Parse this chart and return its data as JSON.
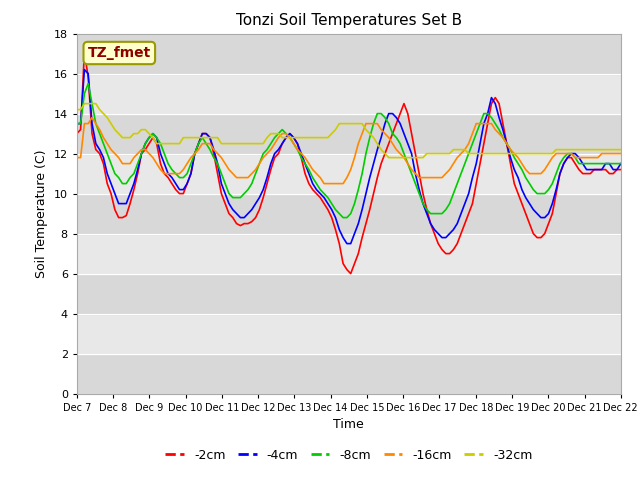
{
  "title": "Tonzi Soil Temperatures Set B",
  "xlabel": "Time",
  "ylabel": "Soil Temperature (C)",
  "annotation": "TZ_fmet",
  "annotation_color": "#8B0000",
  "annotation_bg": "#FFFFCC",
  "annotation_edge": "#999900",
  "ylim": [
    0,
    18
  ],
  "yticks": [
    0,
    2,
    4,
    6,
    8,
    10,
    12,
    14,
    16,
    18
  ],
  "xtick_labels": [
    "Dec 7",
    "Dec 8",
    "Dec 9",
    "Dec 10",
    "Dec 11",
    "Dec 12",
    "Dec 13",
    "Dec 14",
    "Dec 15",
    "Dec 16",
    "Dec 17",
    "Dec 18",
    "Dec 19",
    "Dec 20",
    "Dec 21",
    "Dec 22"
  ],
  "colors": {
    "-2cm": "#FF0000",
    "-4cm": "#0000FF",
    "-8cm": "#00CC00",
    "-16cm": "#FF8800",
    "-32cm": "#CCCC00"
  },
  "linewidth": 1.2,
  "figsize": [
    6.4,
    4.8
  ],
  "dpi": 100,
  "bg_even": "#D8D8D8",
  "bg_odd": "#E8E8E8",
  "series": {
    "-2cm": [
      13.0,
      13.2,
      17.1,
      15.8,
      13.0,
      12.2,
      12.0,
      11.5,
      10.5,
      10.0,
      9.2,
      8.8,
      8.8,
      8.9,
      9.5,
      10.2,
      11.0,
      12.0,
      12.2,
      12.5,
      12.8,
      12.5,
      11.5,
      11.0,
      10.8,
      10.5,
      10.2,
      10.0,
      10.0,
      10.5,
      11.0,
      12.0,
      12.5,
      13.0,
      13.0,
      12.8,
      12.0,
      11.0,
      10.0,
      9.5,
      9.0,
      8.8,
      8.5,
      8.4,
      8.5,
      8.5,
      8.6,
      8.8,
      9.2,
      9.8,
      10.5,
      11.2,
      11.8,
      12.0,
      12.5,
      12.8,
      13.0,
      12.8,
      12.5,
      11.8,
      11.0,
      10.5,
      10.2,
      10.0,
      9.8,
      9.5,
      9.2,
      8.8,
      8.2,
      7.5,
      6.5,
      6.2,
      6.0,
      6.5,
      7.0,
      7.8,
      8.5,
      9.2,
      10.0,
      10.8,
      11.5,
      12.0,
      12.5,
      13.0,
      13.5,
      14.0,
      14.5,
      14.0,
      13.0,
      12.0,
      11.0,
      10.0,
      9.2,
      8.5,
      8.0,
      7.5,
      7.2,
      7.0,
      7.0,
      7.2,
      7.5,
      8.0,
      8.5,
      9.0,
      9.5,
      10.5,
      11.5,
      12.5,
      13.5,
      14.5,
      14.8,
      14.5,
      13.5,
      12.5,
      11.5,
      10.5,
      10.0,
      9.5,
      9.0,
      8.5,
      8.0,
      7.8,
      7.8,
      8.0,
      8.5,
      9.0,
      10.0,
      11.0,
      11.5,
      11.8,
      11.8,
      11.5,
      11.2,
      11.0,
      11.0,
      11.0,
      11.2,
      11.2,
      11.2,
      11.2,
      11.0,
      11.0,
      11.2,
      11.2
    ],
    "-4cm": [
      13.5,
      13.5,
      16.2,
      16.0,
      13.5,
      12.5,
      12.2,
      11.8,
      11.0,
      10.5,
      10.0,
      9.5,
      9.5,
      9.5,
      10.0,
      10.5,
      11.2,
      12.0,
      12.5,
      12.8,
      13.0,
      12.8,
      12.0,
      11.5,
      11.0,
      10.8,
      10.5,
      10.2,
      10.2,
      10.5,
      11.0,
      12.0,
      12.5,
      13.0,
      13.0,
      12.8,
      12.2,
      11.5,
      10.5,
      10.0,
      9.5,
      9.2,
      9.0,
      8.8,
      8.8,
      9.0,
      9.2,
      9.5,
      9.8,
      10.2,
      10.8,
      11.5,
      12.0,
      12.2,
      12.5,
      12.8,
      13.0,
      12.8,
      12.5,
      12.0,
      11.5,
      11.0,
      10.5,
      10.2,
      10.0,
      9.8,
      9.5,
      9.2,
      8.8,
      8.2,
      7.8,
      7.5,
      7.5,
      8.0,
      8.5,
      9.2,
      10.0,
      10.8,
      11.5,
      12.2,
      12.8,
      13.5,
      14.0,
      14.0,
      13.8,
      13.5,
      13.0,
      12.5,
      12.0,
      11.0,
      10.2,
      9.5,
      9.0,
      8.5,
      8.2,
      8.0,
      7.8,
      7.8,
      8.0,
      8.2,
      8.5,
      9.0,
      9.5,
      10.0,
      10.8,
      11.5,
      12.5,
      13.5,
      14.0,
      14.8,
      14.5,
      13.8,
      13.2,
      12.5,
      11.8,
      11.2,
      10.8,
      10.2,
      9.8,
      9.5,
      9.2,
      9.0,
      8.8,
      8.8,
      9.0,
      9.5,
      10.2,
      11.0,
      11.5,
      11.8,
      12.0,
      12.0,
      11.8,
      11.5,
      11.2,
      11.2,
      11.2,
      11.2,
      11.2,
      11.5,
      11.5,
      11.2,
      11.2,
      11.5
    ],
    "-8cm": [
      13.5,
      13.5,
      15.0,
      15.5,
      14.5,
      13.5,
      13.0,
      12.5,
      12.0,
      11.5,
      11.0,
      10.8,
      10.5,
      10.5,
      10.8,
      11.0,
      11.5,
      12.0,
      12.5,
      12.8,
      13.0,
      12.8,
      12.5,
      12.0,
      11.5,
      11.2,
      11.0,
      10.8,
      10.8,
      11.0,
      11.5,
      12.0,
      12.5,
      12.8,
      12.5,
      12.2,
      11.8,
      11.5,
      11.0,
      10.5,
      10.0,
      9.8,
      9.8,
      9.8,
      10.0,
      10.2,
      10.5,
      11.0,
      11.5,
      12.0,
      12.2,
      12.5,
      12.8,
      13.0,
      13.2,
      13.0,
      12.8,
      12.5,
      12.2,
      11.8,
      11.5,
      11.2,
      10.8,
      10.5,
      10.2,
      10.0,
      9.8,
      9.5,
      9.2,
      9.0,
      8.8,
      8.8,
      9.0,
      9.5,
      10.2,
      11.0,
      12.0,
      12.8,
      13.5,
      14.0,
      14.0,
      13.8,
      13.5,
      13.0,
      12.8,
      12.5,
      12.0,
      11.5,
      11.0,
      10.5,
      10.0,
      9.5,
      9.2,
      9.0,
      9.0,
      9.0,
      9.0,
      9.2,
      9.5,
      10.0,
      10.5,
      11.0,
      11.5,
      12.0,
      12.5,
      13.0,
      13.5,
      14.0,
      14.0,
      13.8,
      13.5,
      13.2,
      12.8,
      12.5,
      12.2,
      11.8,
      11.5,
      11.2,
      10.8,
      10.5,
      10.2,
      10.0,
      10.0,
      10.0,
      10.2,
      10.5,
      11.0,
      11.5,
      11.8,
      12.0,
      12.0,
      11.8,
      11.5,
      11.5,
      11.5,
      11.5,
      11.5,
      11.5,
      11.5,
      11.5,
      11.5,
      11.5,
      11.5,
      11.5
    ],
    "-16cm": [
      11.8,
      11.8,
      13.5,
      13.5,
      13.8,
      13.5,
      13.2,
      12.8,
      12.5,
      12.2,
      12.0,
      11.8,
      11.5,
      11.5,
      11.5,
      11.8,
      12.0,
      12.2,
      12.2,
      12.0,
      11.8,
      11.5,
      11.2,
      11.0,
      11.0,
      11.0,
      11.0,
      11.0,
      11.2,
      11.5,
      11.8,
      12.0,
      12.2,
      12.5,
      12.5,
      12.5,
      12.2,
      12.0,
      11.8,
      11.5,
      11.2,
      11.0,
      10.8,
      10.8,
      10.8,
      10.8,
      11.0,
      11.2,
      11.5,
      11.8,
      12.0,
      12.2,
      12.5,
      12.8,
      13.0,
      13.0,
      12.8,
      12.5,
      12.2,
      12.0,
      11.8,
      11.5,
      11.2,
      11.0,
      10.8,
      10.5,
      10.5,
      10.5,
      10.5,
      10.5,
      10.5,
      10.8,
      11.2,
      11.8,
      12.5,
      13.0,
      13.5,
      13.5,
      13.5,
      13.5,
      13.2,
      13.0,
      12.8,
      12.5,
      12.2,
      12.0,
      11.8,
      11.5,
      11.2,
      11.0,
      10.8,
      10.8,
      10.8,
      10.8,
      10.8,
      10.8,
      10.8,
      11.0,
      11.2,
      11.5,
      11.8,
      12.0,
      12.2,
      12.5,
      13.0,
      13.5,
      13.5,
      13.5,
      13.5,
      13.5,
      13.2,
      13.0,
      12.8,
      12.5,
      12.2,
      12.0,
      11.8,
      11.5,
      11.2,
      11.0,
      11.0,
      11.0,
      11.0,
      11.2,
      11.5,
      11.8,
      12.0,
      12.0,
      12.0,
      12.0,
      12.0,
      11.8,
      11.8,
      11.8,
      11.8,
      11.8,
      11.8,
      11.8,
      12.0,
      12.0,
      12.0,
      12.0,
      12.0,
      12.0
    ],
    "-32cm": [
      14.2,
      14.2,
      14.5,
      14.5,
      14.5,
      14.5,
      14.2,
      14.0,
      13.8,
      13.5,
      13.2,
      13.0,
      12.8,
      12.8,
      12.8,
      13.0,
      13.0,
      13.2,
      13.2,
      13.0,
      12.8,
      12.5,
      12.5,
      12.5,
      12.5,
      12.5,
      12.5,
      12.5,
      12.8,
      12.8,
      12.8,
      12.8,
      12.8,
      12.8,
      12.8,
      12.8,
      12.8,
      12.8,
      12.5,
      12.5,
      12.5,
      12.5,
      12.5,
      12.5,
      12.5,
      12.5,
      12.5,
      12.5,
      12.5,
      12.5,
      12.8,
      13.0,
      13.0,
      13.0,
      12.8,
      12.8,
      12.8,
      12.8,
      12.8,
      12.8,
      12.8,
      12.8,
      12.8,
      12.8,
      12.8,
      12.8,
      12.8,
      13.0,
      13.2,
      13.5,
      13.5,
      13.5,
      13.5,
      13.5,
      13.5,
      13.5,
      13.2,
      13.0,
      12.8,
      12.5,
      12.2,
      12.0,
      11.8,
      11.8,
      11.8,
      11.8,
      11.8,
      11.8,
      11.8,
      11.8,
      11.8,
      11.8,
      12.0,
      12.0,
      12.0,
      12.0,
      12.0,
      12.0,
      12.0,
      12.2,
      12.2,
      12.2,
      12.2,
      12.0,
      12.0,
      12.0,
      12.0,
      12.0,
      12.0,
      12.0,
      12.0,
      12.0,
      12.0,
      12.0,
      12.0,
      12.0,
      12.0,
      12.0,
      12.0,
      12.0,
      12.0,
      12.0,
      12.0,
      12.0,
      12.0,
      12.0,
      12.2,
      12.2,
      12.2,
      12.2,
      12.2,
      12.2,
      12.2,
      12.2,
      12.2,
      12.2,
      12.2,
      12.2,
      12.2,
      12.2,
      12.2,
      12.2,
      12.2,
      12.2
    ]
  }
}
